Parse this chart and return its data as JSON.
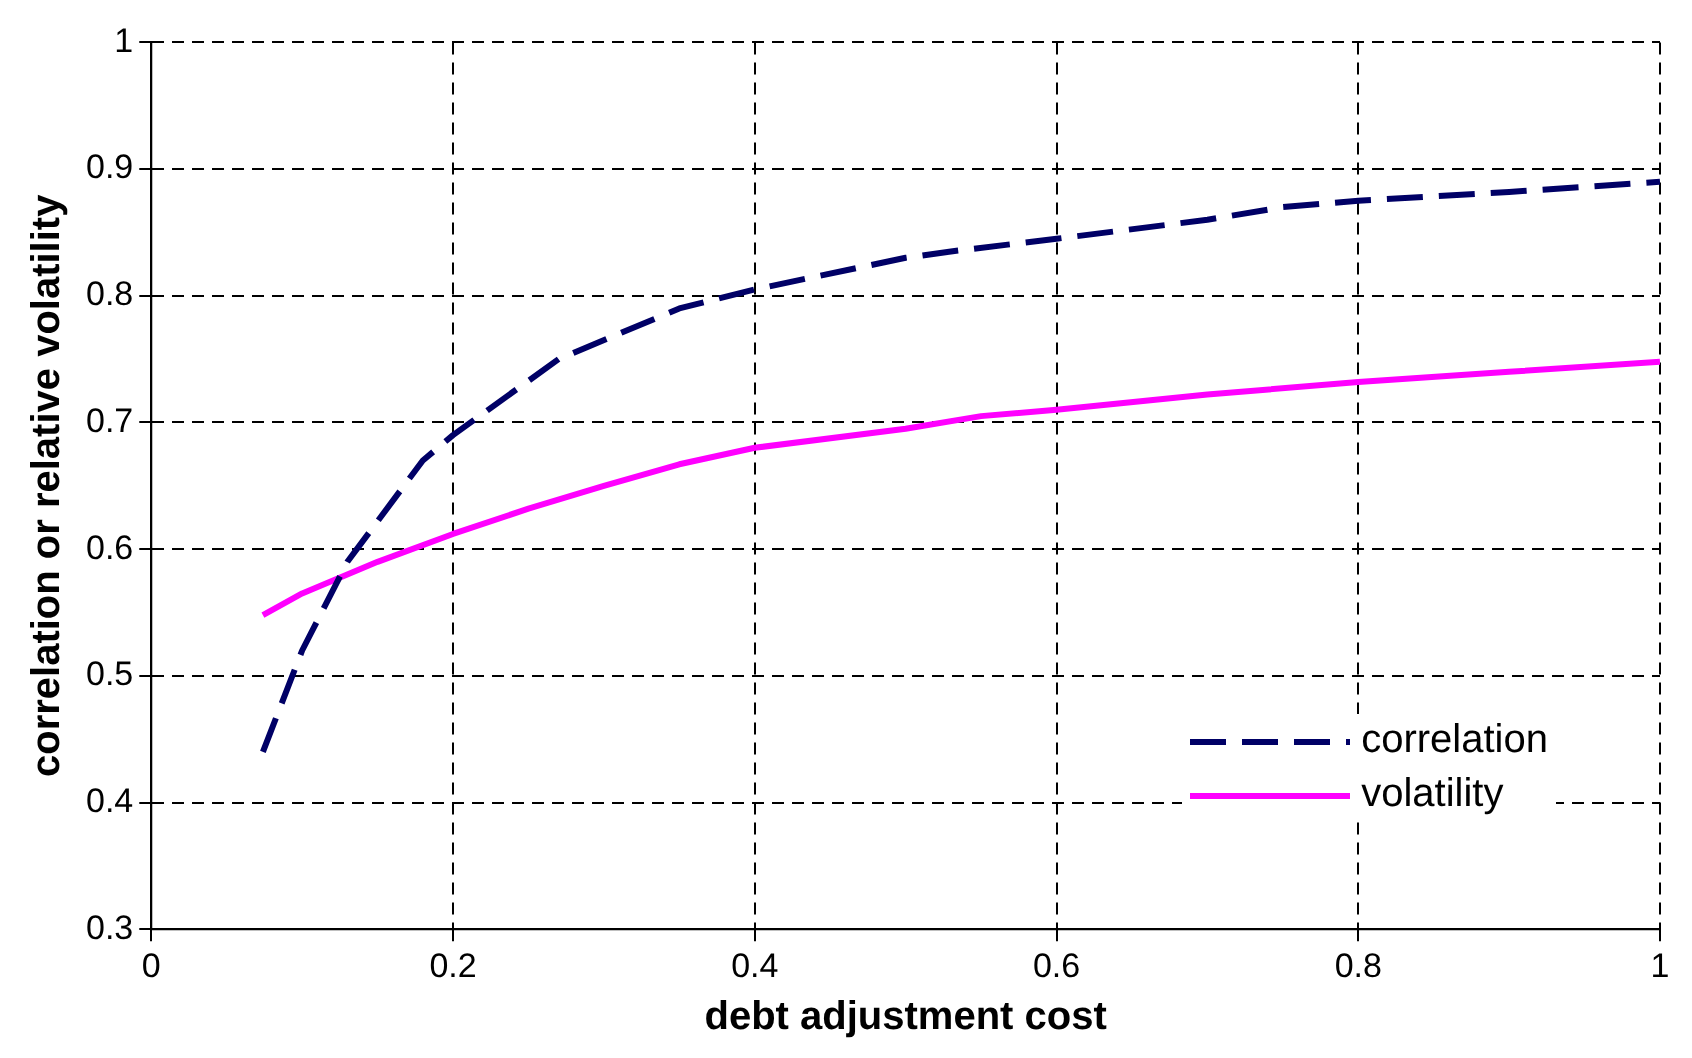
{
  "chart_data": {
    "type": "line",
    "xlabel": "debt adjustment cost",
    "ylabel": "correlation or relative volatility",
    "xlim": [
      0,
      1
    ],
    "xticks": [
      0,
      0.2,
      0.4,
      0.6,
      0.8,
      1
    ],
    "ylim": [
      0.3,
      1
    ],
    "yticks": [
      0.3,
      0.4,
      0.5,
      0.6,
      0.7,
      0.8,
      0.9,
      1
    ],
    "grid": true,
    "legend": "bottom right",
    "marker": "none",
    "series": [
      {
        "name": "correlation",
        "color": "#000066",
        "line_style": "dashed",
        "x": [
          0.074,
          0.1,
          0.13,
          0.18,
          0.2,
          0.27,
          0.35,
          0.4,
          0.5,
          0.53,
          0.6,
          0.7,
          0.75,
          0.8,
          0.9,
          1
        ],
        "values": [
          0.44,
          0.52,
          0.59,
          0.67,
          0.69,
          0.75,
          0.79,
          0.805,
          0.83,
          0.835,
          0.845,
          0.86,
          0.87,
          0.875,
          0.882,
          0.89
        ]
      },
      {
        "name": "volatility",
        "color": "#ff00ff",
        "line_style": "solid",
        "x": [
          0.074,
          0.1,
          0.15,
          0.2,
          0.25,
          0.3,
          0.35,
          0.4,
          0.5,
          0.55,
          0.6,
          0.7,
          0.8,
          0.9,
          1
        ],
        "values": [
          0.548,
          0.565,
          0.59,
          0.612,
          0.632,
          0.65,
          0.667,
          0.68,
          0.695,
          0.705,
          0.71,
          0.722,
          0.732,
          0.74,
          0.748
        ]
      }
    ]
  }
}
